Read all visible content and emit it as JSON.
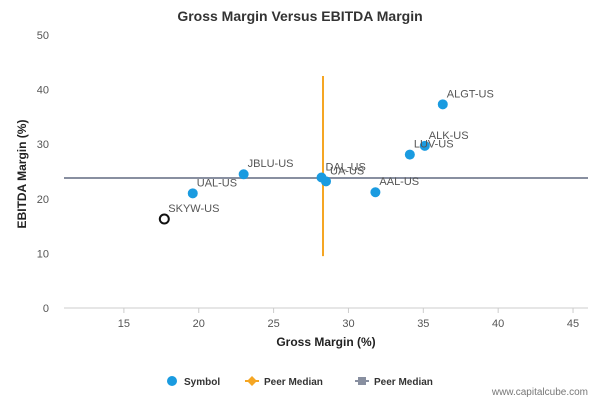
{
  "chart_data": {
    "type": "scatter",
    "title": "Gross Margin Versus EBITDA Margin",
    "xlabel": "Gross Margin (%)",
    "ylabel": "EBITDA Margin (%)",
    "xlim": [
      11,
      46
    ],
    "ylim": [
      0,
      50
    ],
    "xticks": [
      15,
      20,
      25,
      30,
      35,
      40,
      45
    ],
    "yticks": [
      0,
      10,
      20,
      30,
      40,
      50
    ],
    "grid": false,
    "points": [
      {
        "label": "ALGT-US",
        "x": 36.3,
        "y": 37.3,
        "style": "filled"
      },
      {
        "label": "ALK-US",
        "x": 35.1,
        "y": 29.7,
        "style": "filled"
      },
      {
        "label": "LUV-US",
        "x": 34.1,
        "y": 28.1,
        "style": "filled"
      },
      {
        "label": "JBLU-US",
        "x": 23.0,
        "y": 24.5,
        "style": "filled"
      },
      {
        "label": "DAL-US",
        "x": 28.2,
        "y": 23.9,
        "style": "filled"
      },
      {
        "label": "UA-US",
        "x": 28.5,
        "y": 23.2,
        "style": "filled"
      },
      {
        "label": "AAL-US",
        "x": 31.8,
        "y": 21.2,
        "style": "filled"
      },
      {
        "label": "UAL-US",
        "x": 19.6,
        "y": 21.0,
        "style": "filled"
      },
      {
        "label": "SKYW-US",
        "x": 17.7,
        "y": 16.3,
        "style": "hollow"
      }
    ],
    "peer_median_x": {
      "value": 28.3,
      "y_from": 9.5,
      "y_to": 42.5
    },
    "peer_median_y": {
      "value": 23.8
    },
    "legend": [
      {
        "label": "Symbol",
        "marker": "circle",
        "color": "#1a9be0"
      },
      {
        "label": "Peer Median",
        "marker": "diamond-line",
        "color": "#f5a623"
      },
      {
        "label": "Peer Median",
        "marker": "square-line",
        "color": "#888fa0"
      }
    ],
    "legend_position": "bottom-center"
  },
  "colors": {
    "point": "#1a9be0",
    "hollow_point": "#111111",
    "median_x": "#f5a623",
    "median_y": "#888fa0",
    "axis": "#cccccc"
  },
  "watermark": "www.capitalcube.com"
}
